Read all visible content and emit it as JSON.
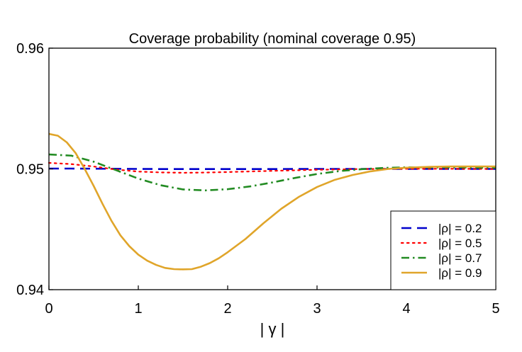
{
  "chart_data": {
    "type": "line",
    "title": "Coverage probability (nominal coverage 0.95)",
    "xlabel": "| γ |",
    "ylabel": "",
    "xlim": [
      0,
      5
    ],
    "ylim": [
      0.94,
      0.96
    ],
    "xticks": [
      0,
      1,
      2,
      3,
      4,
      5
    ],
    "xtick_labels": [
      "0",
      "1",
      "2",
      "3",
      "4",
      "5"
    ],
    "yticks": [
      0.94,
      0.95,
      0.96
    ],
    "ytick_labels": [
      "0.94",
      "0.95",
      "0.96"
    ],
    "grid": false,
    "legend_position": "bottom-right",
    "series": [
      {
        "name": "|ρ| = 0.2",
        "color": "#0000cc",
        "style": "dashed",
        "x": [
          0,
          0.25,
          0.5,
          0.75,
          1,
          1.25,
          1.5,
          1.75,
          2,
          2.5,
          3,
          3.5,
          4,
          4.5,
          5
        ],
        "values": [
          0.95003,
          0.95003,
          0.95002,
          0.95001,
          0.95,
          0.94999,
          0.94999,
          0.94999,
          0.94999,
          0.94999,
          0.95,
          0.95,
          0.95,
          0.95,
          0.95
        ]
      },
      {
        "name": "|ρ| = 0.5",
        "color": "#ff0000",
        "style": "dotted",
        "x": [
          0,
          0.25,
          0.5,
          0.75,
          1,
          1.25,
          1.5,
          1.75,
          2,
          2.5,
          3,
          3.5,
          4,
          4.5,
          5
        ],
        "values": [
          0.9505,
          0.9504,
          0.9502,
          0.94995,
          0.94978,
          0.94971,
          0.94968,
          0.9497,
          0.94974,
          0.94984,
          0.94993,
          0.94999,
          0.95001,
          0.95001,
          0.95
        ]
      },
      {
        "name": "|ρ| = 0.7",
        "color": "#228b22",
        "style": "dashdot",
        "x": [
          0,
          0.25,
          0.5,
          0.75,
          1,
          1.25,
          1.5,
          1.75,
          2,
          2.25,
          2.5,
          2.75,
          3,
          3.25,
          3.5,
          3.75,
          4,
          4.5,
          5
        ],
        "values": [
          0.9512,
          0.9511,
          0.9506,
          0.9499,
          0.9492,
          0.94865,
          0.9483,
          0.94822,
          0.94832,
          0.94855,
          0.94888,
          0.94925,
          0.94958,
          0.94982,
          0.94998,
          0.95008,
          0.95013,
          0.95013,
          0.9501
        ]
      },
      {
        "name": "|ρ| = 0.9",
        "color": "#e0a52a",
        "style": "solid",
        "x": [
          0,
          0.1,
          0.2,
          0.3,
          0.4,
          0.5,
          0.6,
          0.7,
          0.8,
          0.9,
          1,
          1.1,
          1.2,
          1.3,
          1.4,
          1.5,
          1.6,
          1.7,
          1.8,
          1.9,
          2,
          2.2,
          2.4,
          2.6,
          2.8,
          3,
          3.2,
          3.4,
          3.6,
          3.8,
          4,
          4.25,
          4.5,
          4.75,
          5
        ],
        "values": [
          0.9529,
          0.95275,
          0.9522,
          0.9513,
          0.95,
          0.9486,
          0.9471,
          0.9457,
          0.9445,
          0.9436,
          0.9429,
          0.9424,
          0.94205,
          0.9418,
          0.9417,
          0.94168,
          0.9417,
          0.9419,
          0.9422,
          0.9426,
          0.9431,
          0.9442,
          0.9455,
          0.9467,
          0.9477,
          0.9485,
          0.9491,
          0.9495,
          0.9498,
          0.95,
          0.9501,
          0.95017,
          0.9502,
          0.9502,
          0.9502
        ]
      }
    ]
  }
}
